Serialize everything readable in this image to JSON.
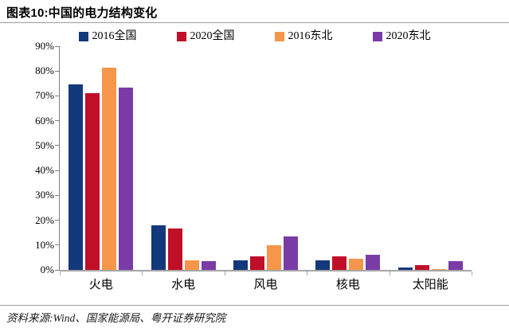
{
  "header": {
    "title": "图表10:中国的电力结构变化"
  },
  "footer": {
    "source": "资料来源:Wind、国家能源局、粤开证券研究院"
  },
  "colors": {
    "series_blue": "#13397c",
    "series_red": "#c00f28",
    "series_orange": "#f5964a",
    "series_purple": "#7b3ba7",
    "axis_gray": "#a6a6a6",
    "divider_gray": "#9d9d9d"
  },
  "chart_data": {
    "type": "bar",
    "title": "中国的电力结构变化",
    "categories": [
      "火电",
      "水电",
      "风电",
      "核电",
      "太阳能"
    ],
    "series": [
      {
        "name": "2016全国",
        "color": "#13397c",
        "values": [
          74.5,
          18.0,
          3.7,
          3.8,
          0.9
        ]
      },
      {
        "name": "2020全国",
        "color": "#c00f28",
        "values": [
          71.2,
          16.5,
          5.5,
          5.3,
          2.0
        ]
      },
      {
        "name": "2016东北",
        "color": "#f5964a",
        "values": [
          81.5,
          3.7,
          10.0,
          4.6,
          0.4
        ]
      },
      {
        "name": "2020东北",
        "color": "#7b3ba7",
        "values": [
          73.5,
          3.5,
          13.5,
          6.2,
          3.5
        ]
      }
    ],
    "xlabel": "",
    "ylabel": "",
    "ylim": [
      0,
      90
    ],
    "ytick_step": 10,
    "ytick_suffix": "%",
    "grid": false,
    "legend_position": "top"
  }
}
